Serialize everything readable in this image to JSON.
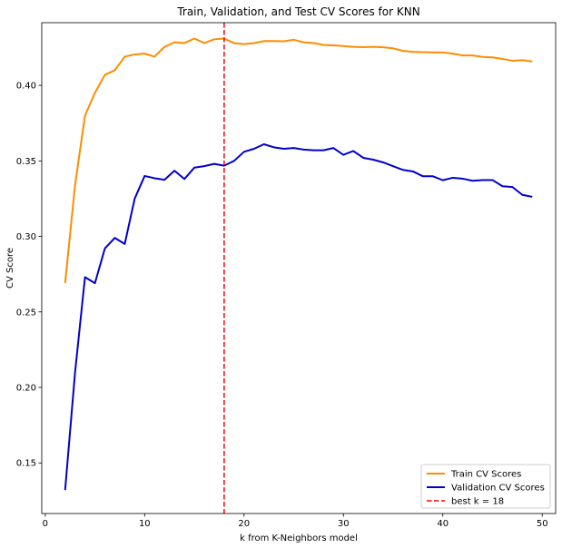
{
  "chart_data": {
    "type": "line",
    "title": "Train, Validation, and Test CV Scores for KNN",
    "xlabel": "k from K-Neighbors model",
    "ylabel": "CV Score",
    "xlim": [
      -0.35,
      51.35
    ],
    "ylim": [
      0.1165,
      0.4415
    ],
    "xticks": [
      0,
      10,
      20,
      30,
      40,
      50
    ],
    "xtick_labels": [
      "0",
      "10",
      "20",
      "30",
      "40",
      "50"
    ],
    "yticks": [
      0.15,
      0.2,
      0.25,
      0.3,
      0.35,
      0.4
    ],
    "ytick_labels": [
      "0.15",
      "0.20",
      "0.25",
      "0.30",
      "0.35",
      "0.40"
    ],
    "grid": false,
    "legend_position": "lower-right",
    "x": [
      2,
      3,
      4,
      5,
      6,
      7,
      8,
      9,
      10,
      11,
      12,
      13,
      14,
      15,
      16,
      17,
      18,
      19,
      20,
      21,
      22,
      23,
      24,
      25,
      26,
      27,
      28,
      29,
      30,
      31,
      32,
      33,
      34,
      35,
      36,
      37,
      38,
      39,
      40,
      41,
      42,
      43,
      44,
      45,
      46,
      47,
      48,
      49
    ],
    "series": [
      {
        "name": "Train CV Scores",
        "color": "#ff8c00",
        "style": "solid",
        "values": [
          0.269,
          0.334,
          0.38,
          0.395,
          0.407,
          0.41,
          0.419,
          0.4205,
          0.421,
          0.419,
          0.4255,
          0.4285,
          0.428,
          0.431,
          0.428,
          0.4305,
          0.431,
          0.428,
          0.4273,
          0.428,
          0.4293,
          0.4293,
          0.4292,
          0.4302,
          0.4285,
          0.428,
          0.4268,
          0.4265,
          0.426,
          0.4255,
          0.4253,
          0.4255,
          0.4252,
          0.4245,
          0.4228,
          0.4222,
          0.422,
          0.4218,
          0.4218,
          0.421,
          0.4198,
          0.4198,
          0.4188,
          0.4185,
          0.4175,
          0.4163,
          0.4167,
          0.4158
        ]
      },
      {
        "name": "Validation CV Scores",
        "color": "#0000cd",
        "style": "solid",
        "values": [
          0.132,
          0.21,
          0.273,
          0.269,
          0.292,
          0.299,
          0.295,
          0.325,
          0.34,
          0.3385,
          0.3375,
          0.3435,
          0.338,
          0.3455,
          0.3465,
          0.348,
          0.3468,
          0.35,
          0.356,
          0.358,
          0.361,
          0.359,
          0.358,
          0.3585,
          0.3575,
          0.357,
          0.357,
          0.3585,
          0.354,
          0.3565,
          0.352,
          0.3508,
          0.349,
          0.3465,
          0.344,
          0.343,
          0.3398,
          0.3398,
          0.3372,
          0.3388,
          0.3382,
          0.3368,
          0.3373,
          0.3373,
          0.3332,
          0.3327,
          0.3275,
          0.3262
        ]
      }
    ],
    "vline": {
      "x": 18,
      "name": "best k = 18",
      "color": "#ff0000",
      "style": "dashed"
    }
  }
}
